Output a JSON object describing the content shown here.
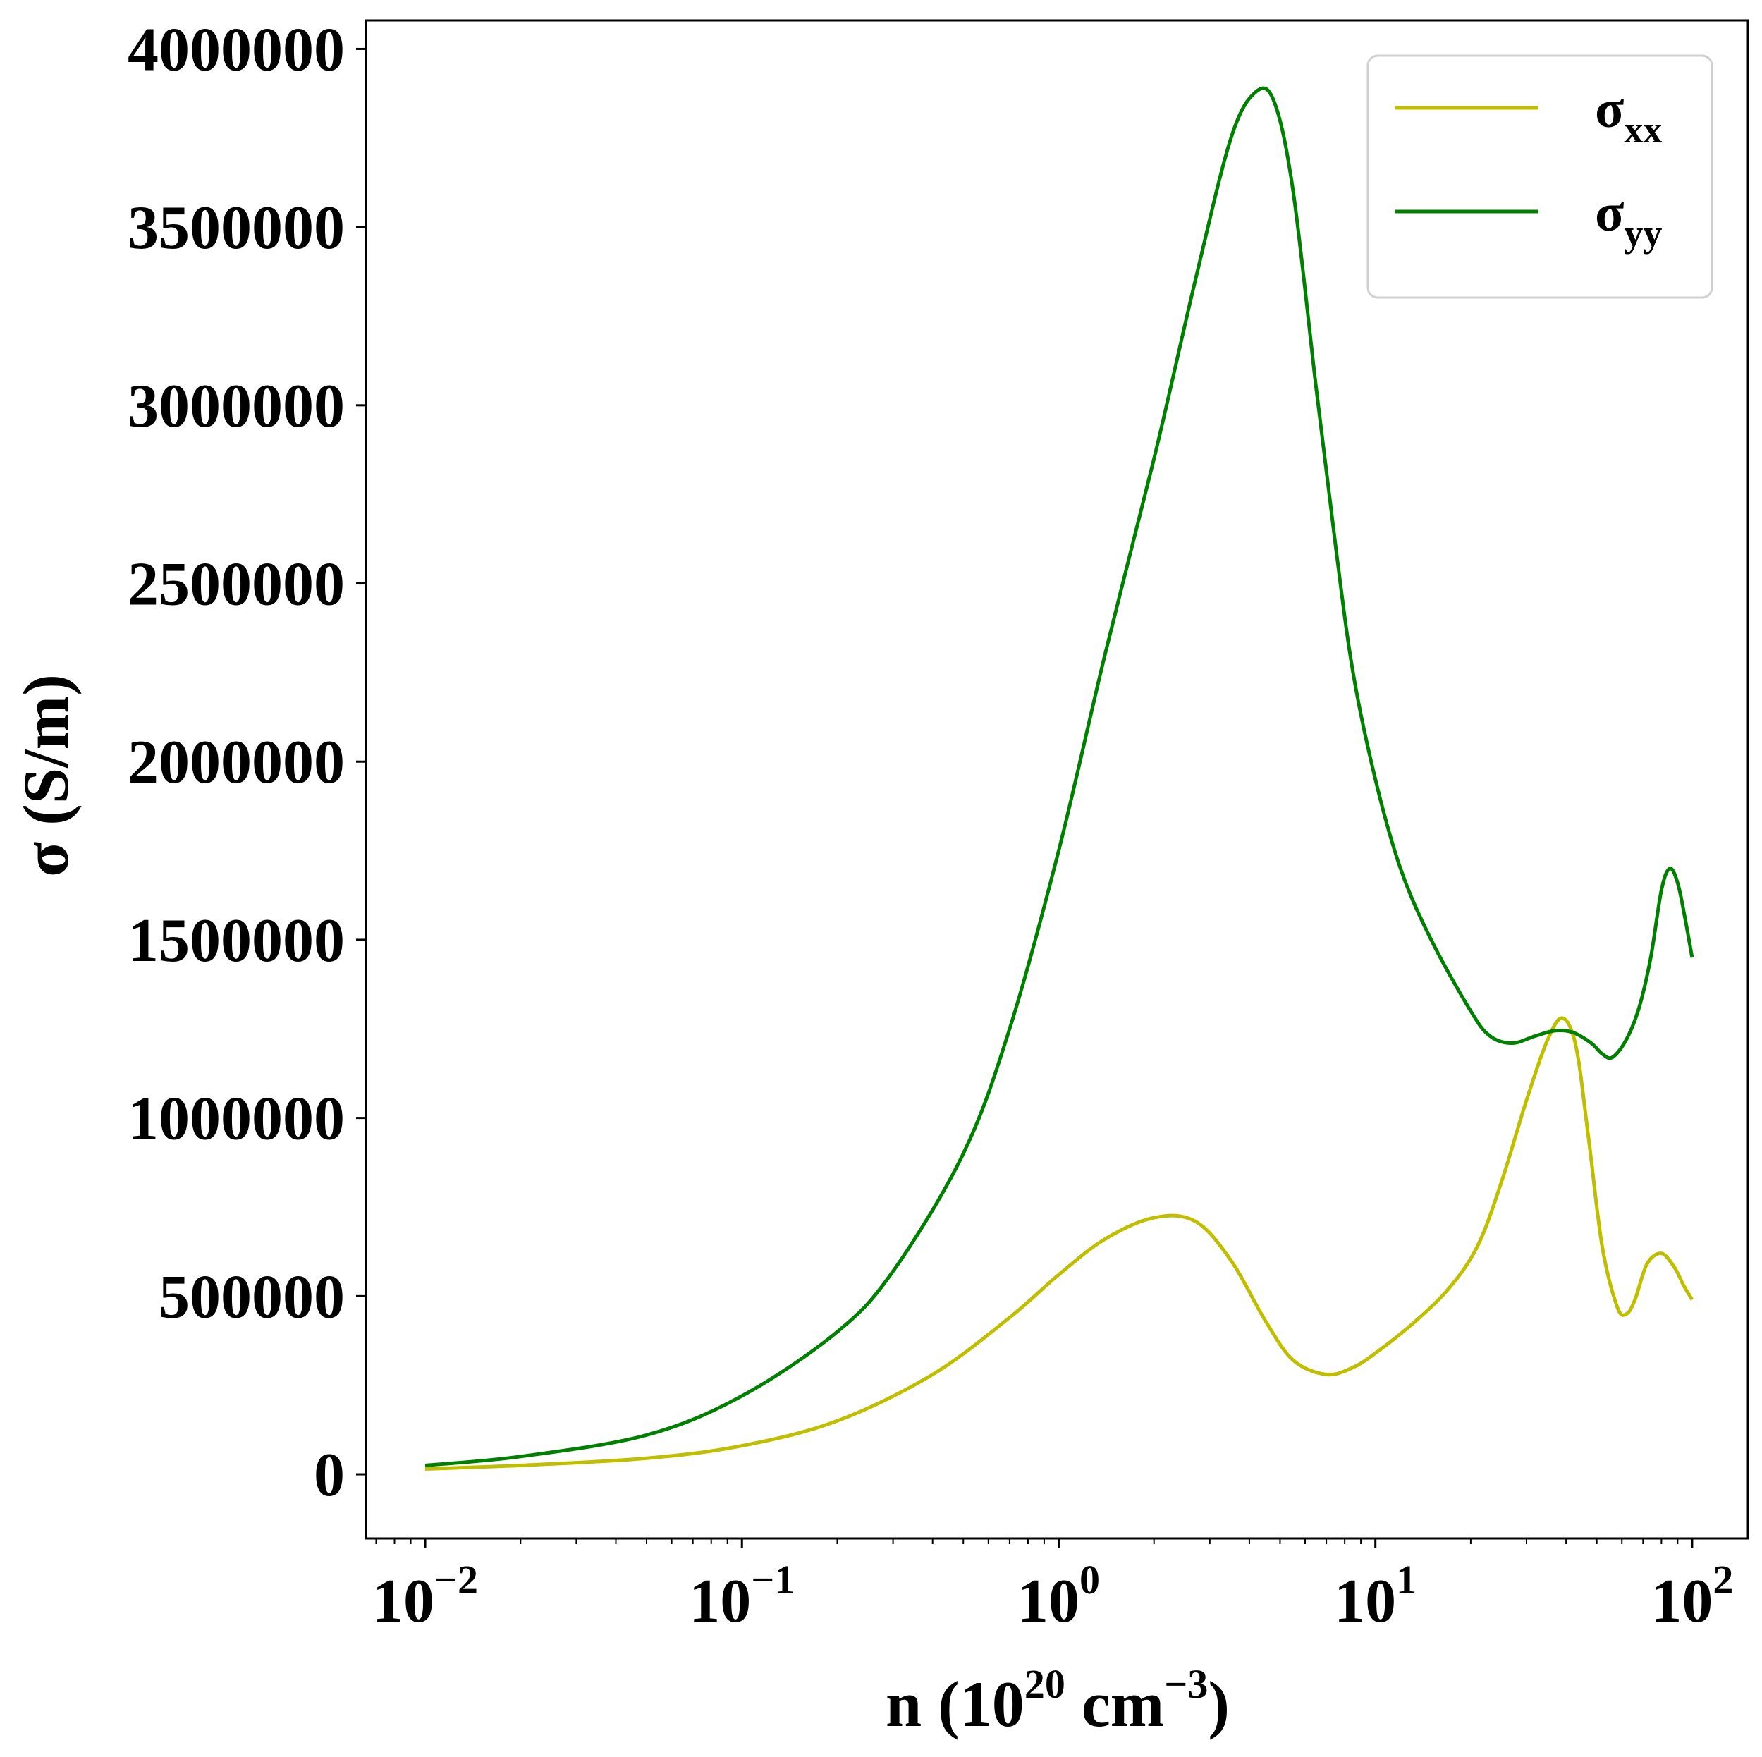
{
  "chart_data": {
    "type": "line",
    "xscale": "log",
    "xlim": [
      0.0065,
      150
    ],
    "ylim": [
      -180000,
      4080000
    ],
    "xlabel": {
      "main": "n (10",
      "sup1": "20",
      "mid": " cm",
      "sup2": "−3",
      "end": ")"
    },
    "ylabel": "σ (S/m)",
    "yticks": [
      {
        "value": 0,
        "label": "0"
      },
      {
        "value": 500000,
        "label": "500000"
      },
      {
        "value": 1000000,
        "label": "1000000"
      },
      {
        "value": 1500000,
        "label": "1500000"
      },
      {
        "value": 2000000,
        "label": "2000000"
      },
      {
        "value": 2500000,
        "label": "2500000"
      },
      {
        "value": 3000000,
        "label": "3000000"
      },
      {
        "value": 3500000,
        "label": "3500000"
      },
      {
        "value": 4000000,
        "label": "4000000"
      }
    ],
    "xticks": [
      {
        "value": 0.01,
        "base": "10",
        "exp": "−2"
      },
      {
        "value": 0.1,
        "base": "10",
        "exp": "−1"
      },
      {
        "value": 1,
        "base": "10",
        "exp": "0"
      },
      {
        "value": 10,
        "base": "10",
        "exp": "1"
      },
      {
        "value": 100,
        "base": "10",
        "exp": "2"
      }
    ],
    "legend": {
      "position": "upper right"
    },
    "series": [
      {
        "name": "σxx",
        "label_main": "σ",
        "label_sub": "xx",
        "color": "#bfbf00",
        "x": [
          0.01,
          0.02,
          0.05,
          0.1,
          0.2,
          0.4,
          0.7,
          1.0,
          1.4,
          2.0,
          2.7,
          3.5,
          4.5,
          5.5,
          7.0,
          8.5,
          10,
          13,
          17,
          21,
          25,
          30,
          35,
          39,
          43,
          47,
          52,
          58,
          62,
          66,
          72,
          80,
          88,
          94,
          100
        ],
        "y": [
          15000,
          25000,
          45000,
          80000,
          150000,
          280000,
          440000,
          560000,
          660000,
          720000,
          710000,
          600000,
          430000,
          320000,
          280000,
          300000,
          340000,
          420000,
          520000,
          640000,
          820000,
          1050000,
          1220000,
          1280000,
          1200000,
          950000,
          640000,
          470000,
          450000,
          490000,
          590000,
          620000,
          580000,
          530000,
          490000
        ]
      },
      {
        "name": "σyy",
        "label_main": "σ",
        "label_sub": "yy",
        "color": "#008000",
        "x": [
          0.01,
          0.02,
          0.05,
          0.1,
          0.2,
          0.3,
          0.5,
          0.7,
          1.0,
          1.4,
          2.0,
          2.7,
          3.5,
          4.2,
          4.8,
          5.5,
          6.5,
          7.5,
          8.5,
          10,
          12,
          15,
          20,
          23,
          27,
          32,
          37,
          42,
          48,
          52,
          56,
          62,
          68,
          74,
          80,
          85,
          90,
          95,
          100
        ],
        "y": [
          25000,
          50000,
          110000,
          220000,
          400000,
          570000,
          900000,
          1250000,
          1750000,
          2300000,
          2850000,
          3350000,
          3750000,
          3880000,
          3850000,
          3600000,
          3050000,
          2600000,
          2250000,
          1950000,
          1700000,
          1500000,
          1300000,
          1230000,
          1210000,
          1230000,
          1245000,
          1240000,
          1210000,
          1180000,
          1170000,
          1220000,
          1310000,
          1450000,
          1640000,
          1700000,
          1660000,
          1560000,
          1450000
        ]
      }
    ]
  }
}
